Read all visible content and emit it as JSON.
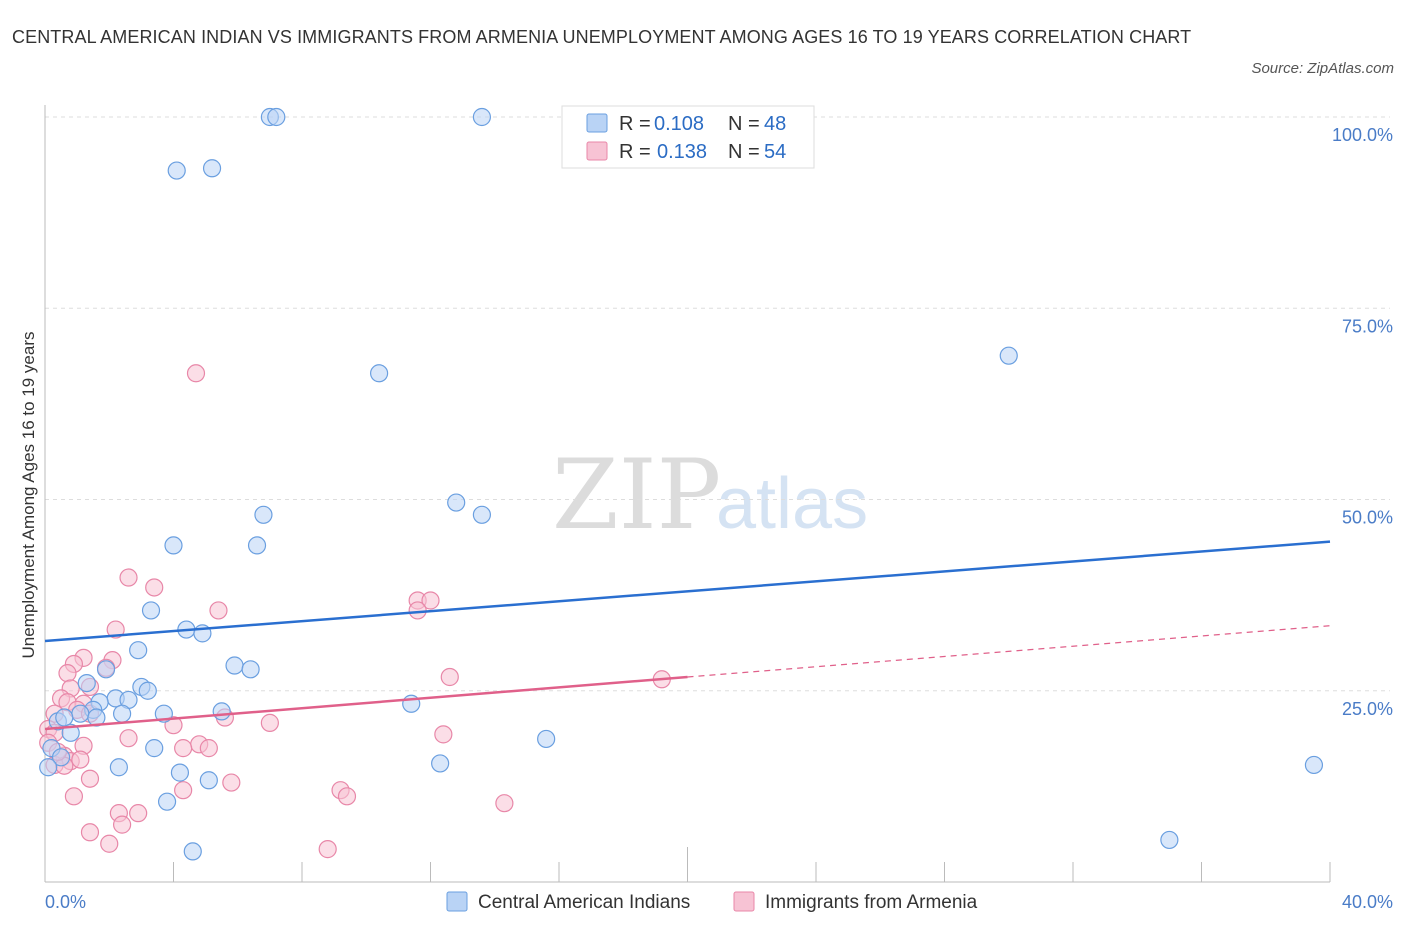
{
  "title": "CENTRAL AMERICAN INDIAN VS IMMIGRANTS FROM ARMENIA UNEMPLOYMENT AMONG AGES 16 TO 19 YEARS CORRELATION CHART",
  "source": "Source: ZipAtlas.com",
  "watermark": {
    "zip": "ZIP",
    "atlas": "atlas"
  },
  "colors": {
    "blue": "#6a9fe0",
    "blue_fill": "#b9d3f5",
    "blue_line": "#2a6fd0",
    "pink": "#e887a8",
    "pink_fill": "#f7c3d4",
    "pink_line": "#e0608a",
    "grid": "#dddddd",
    "axis_text": "#4a7cc7"
  },
  "legend": {
    "r_label": "R =",
    "n_label": "N =",
    "series": [
      {
        "r": "0.108",
        "n": "48"
      },
      {
        "r": "0.138",
        "n": "54"
      }
    ]
  },
  "chart_data": {
    "type": "scatter",
    "title": "CENTRAL AMERICAN INDIAN VS IMMIGRANTS FROM ARMENIA UNEMPLOYMENT AMONG AGES 16 TO 19 YEARS CORRELATION CHART",
    "xlabel": "",
    "ylabel": "Unemployment Among Ages 16 to 19 years",
    "xlim": [
      0,
      40
    ],
    "ylim": [
      0,
      100
    ],
    "x_tick_labels": [
      "0.0%",
      "40.0%"
    ],
    "y_ticks": [
      25,
      50,
      75,
      100
    ],
    "y_tick_labels": [
      "25.0%",
      "50.0%",
      "75.0%",
      "100.0%"
    ],
    "grid": true,
    "legend_position": "top-center",
    "series": [
      {
        "name": "Central American Indians",
        "color": "#6a9fe0",
        "r": 0.108,
        "n": 48,
        "trend": {
          "x": [
            0,
            40
          ],
          "y": [
            31.5,
            44.5
          ],
          "style": "solid"
        },
        "points": [
          [
            7.0,
            100
          ],
          [
            7.2,
            100
          ],
          [
            13.6,
            100
          ],
          [
            4.1,
            93
          ],
          [
            5.2,
            93.3
          ],
          [
            10.4,
            66.5
          ],
          [
            30.0,
            68.8
          ],
          [
            6.8,
            48
          ],
          [
            12.8,
            49.6
          ],
          [
            13.6,
            48
          ],
          [
            4.0,
            44
          ],
          [
            6.6,
            44
          ],
          [
            3.3,
            35.5
          ],
          [
            4.4,
            33
          ],
          [
            4.9,
            32.5
          ],
          [
            2.9,
            30.3
          ],
          [
            5.9,
            28.3
          ],
          [
            6.4,
            27.8
          ],
          [
            1.9,
            27.8
          ],
          [
            1.3,
            26
          ],
          [
            3.0,
            25.5
          ],
          [
            3.2,
            25
          ],
          [
            2.2,
            24
          ],
          [
            2.6,
            23.8
          ],
          [
            1.7,
            23.5
          ],
          [
            1.5,
            22.5
          ],
          [
            1.1,
            22
          ],
          [
            2.4,
            22
          ],
          [
            1.6,
            21.5
          ],
          [
            3.7,
            22
          ],
          [
            5.5,
            22.3
          ],
          [
            0.4,
            21
          ],
          [
            0.6,
            21.5
          ],
          [
            0.8,
            19.5
          ],
          [
            11.4,
            23.3
          ],
          [
            15.6,
            18.7
          ],
          [
            3.4,
            17.5
          ],
          [
            0.2,
            17.5
          ],
          [
            0.5,
            16.3
          ],
          [
            2.3,
            15
          ],
          [
            12.3,
            15.5
          ],
          [
            4.2,
            14.3
          ],
          [
            5.1,
            13.3
          ],
          [
            3.8,
            10.5
          ],
          [
            4.6,
            4
          ],
          [
            35.0,
            5.5
          ],
          [
            39.5,
            15.3
          ],
          [
            0.1,
            15
          ]
        ]
      },
      {
        "name": "Immigrants from Armenia",
        "color": "#e887a8",
        "r": 0.138,
        "n": 54,
        "trend": {
          "x": [
            0,
            20
          ],
          "y": [
            20,
            26.8
          ],
          "style": "solid"
        },
        "trend_extension": {
          "x": [
            20,
            40
          ],
          "y": [
            26.8,
            33.5
          ],
          "style": "dashed"
        },
        "points": [
          [
            4.7,
            66.5
          ],
          [
            2.6,
            39.8
          ],
          [
            3.4,
            38.5
          ],
          [
            11.6,
            36.8
          ],
          [
            12.0,
            36.8
          ],
          [
            11.6,
            35.5
          ],
          [
            5.4,
            35.5
          ],
          [
            2.2,
            33
          ],
          [
            1.2,
            29.3
          ],
          [
            2.1,
            29
          ],
          [
            0.9,
            28.5
          ],
          [
            1.9,
            28
          ],
          [
            0.7,
            27.3
          ],
          [
            12.6,
            26.8
          ],
          [
            19.2,
            26.5
          ],
          [
            1.4,
            25.5
          ],
          [
            0.8,
            25.3
          ],
          [
            0.5,
            24
          ],
          [
            0.7,
            23.5
          ],
          [
            1.2,
            23.3
          ],
          [
            1.0,
            22.5
          ],
          [
            1.4,
            22
          ],
          [
            0.3,
            22
          ],
          [
            5.6,
            21.5
          ],
          [
            4.0,
            20.5
          ],
          [
            7.0,
            20.8
          ],
          [
            0.1,
            20
          ],
          [
            0.3,
            19.5
          ],
          [
            2.6,
            18.8
          ],
          [
            12.4,
            19.3
          ],
          [
            4.8,
            18
          ],
          [
            0.1,
            18.2
          ],
          [
            1.2,
            17.8
          ],
          [
            4.3,
            17.5
          ],
          [
            5.1,
            17.5
          ],
          [
            0.6,
            16.5
          ],
          [
            0.8,
            15.8
          ],
          [
            1.1,
            16
          ],
          [
            0.3,
            15.3
          ],
          [
            0.6,
            15.2
          ],
          [
            1.4,
            13.5
          ],
          [
            5.8,
            13
          ],
          [
            0.9,
            11.2
          ],
          [
            4.3,
            12
          ],
          [
            9.2,
            12
          ],
          [
            9.4,
            11.2
          ],
          [
            14.3,
            10.3
          ],
          [
            2.3,
            9
          ],
          [
            2.9,
            9
          ],
          [
            2.4,
            7.5
          ],
          [
            1.4,
            6.5
          ],
          [
            2.0,
            5
          ],
          [
            8.8,
            4.3
          ],
          [
            0.4,
            17
          ]
        ]
      }
    ]
  }
}
